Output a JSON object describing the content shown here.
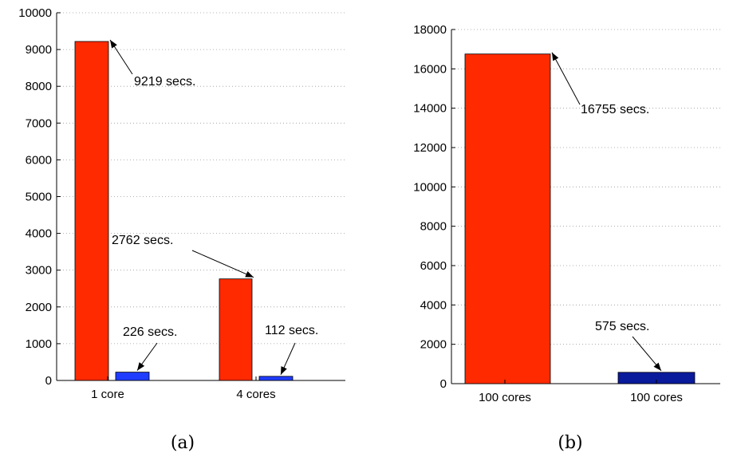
{
  "chart_data": [
    {
      "type": "bar",
      "ylim": [
        0,
        10000
      ],
      "yticks": [
        0,
        1000,
        2000,
        3000,
        4000,
        5000,
        6000,
        7000,
        8000,
        9000,
        10000
      ],
      "grid": true,
      "categories": [
        "1 core",
        "4 cores"
      ],
      "bars": [
        {
          "group": 0,
          "value": 9219,
          "color": "#ff2a00",
          "annotation": "9219 secs."
        },
        {
          "group": 0,
          "value": 226,
          "color": "#1f3cff",
          "annotation": "226 secs."
        },
        {
          "group": 1,
          "value": 2762,
          "color": "#ff2a00",
          "annotation": "2762 secs."
        },
        {
          "group": 1,
          "value": 112,
          "color": "#1f3cff",
          "annotation": "112 secs."
        }
      ],
      "caption": "(a)"
    },
    {
      "type": "bar",
      "ylim": [
        0,
        18000
      ],
      "yticks": [
        0,
        2000,
        4000,
        6000,
        8000,
        10000,
        12000,
        14000,
        16000,
        18000
      ],
      "grid": true,
      "categories": [
        "100 cores",
        "100 cores"
      ],
      "bars": [
        {
          "group": 0,
          "value": 16755,
          "color": "#ff2a00",
          "annotation": "16755 secs."
        },
        {
          "group": 1,
          "value": 575,
          "color": "#0a1a9c",
          "annotation": "575 secs."
        }
      ],
      "caption": "(b)"
    }
  ]
}
